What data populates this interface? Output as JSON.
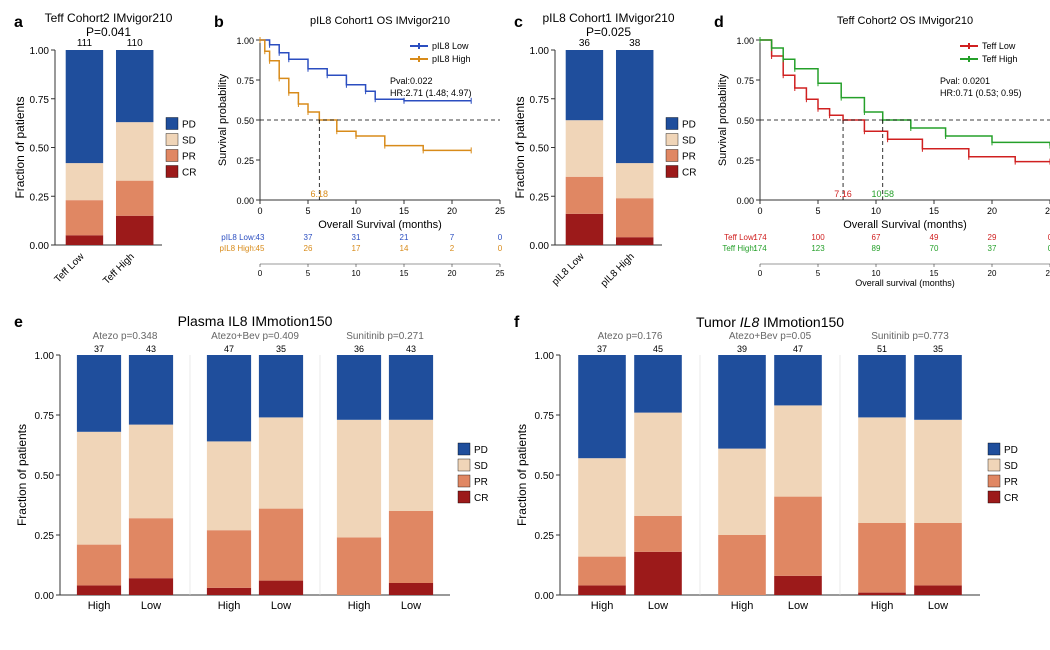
{
  "colors": {
    "PD": "#1f4e9c",
    "SD": "#f0d5b8",
    "PR": "#e08763",
    "CR": "#9c1a1a",
    "axis": "#333333",
    "bg": "#ffffff",
    "km_low_blue": "#2b4ec0",
    "km_high_orange": "#d88b1a",
    "km_low_red": "#d02020",
    "km_high_green": "#25a02a",
    "risk_text_gray": "#666666"
  },
  "legend_response": [
    "PD",
    "SD",
    "PR",
    "CR"
  ],
  "panel_a": {
    "label": "a",
    "title": "Teff Cohort2 IMvigor210",
    "pvalue": "P=0.041",
    "ylab": "Fraction of patients",
    "ymax": 1.0,
    "ytick_step": 0.25,
    "categories": [
      "Teff Low",
      "Teff High"
    ],
    "n": [
      111,
      110
    ],
    "stacks": [
      {
        "CR": 0.05,
        "PR": 0.18,
        "SD": 0.19,
        "PD": 0.58
      },
      {
        "CR": 0.15,
        "PR": 0.18,
        "SD": 0.3,
        "PD": 0.37
      }
    ],
    "rotate_xlabels": -45
  },
  "panel_b": {
    "label": "b",
    "title": "pIL8 Cohort1 OS IMvigor210",
    "ylab": "Survival probability",
    "xlab": "Overall Survival (months)",
    "xlim": [
      0,
      25
    ],
    "xtick_step": 5,
    "ylim": [
      0,
      1
    ],
    "ytick_step": 0.25,
    "ref_y": 0.5,
    "median_x": [
      6.18
    ],
    "median_colors": [
      "km_high_orange"
    ],
    "stats": [
      "Pval:0.022",
      "HR:2.71 (1.48; 4.97)"
    ],
    "series": [
      {
        "name": "pIL8 Low",
        "color": "km_low_blue",
        "points": [
          [
            0,
            1.0
          ],
          [
            1,
            0.97
          ],
          [
            2,
            0.92
          ],
          [
            3,
            0.88
          ],
          [
            5,
            0.82
          ],
          [
            7,
            0.78
          ],
          [
            9,
            0.72
          ],
          [
            11,
            0.68
          ],
          [
            12,
            0.63
          ],
          [
            15,
            0.62
          ],
          [
            22,
            0.62
          ]
        ]
      },
      {
        "name": "pIL8 High",
        "color": "km_high_orange",
        "points": [
          [
            0,
            1.0
          ],
          [
            0.5,
            0.93
          ],
          [
            1,
            0.87
          ],
          [
            2,
            0.76
          ],
          [
            3,
            0.67
          ],
          [
            4,
            0.6
          ],
          [
            5,
            0.55
          ],
          [
            6.18,
            0.5
          ],
          [
            8,
            0.43
          ],
          [
            10,
            0.4
          ],
          [
            13,
            0.34
          ],
          [
            17,
            0.31
          ],
          [
            22,
            0.31
          ]
        ]
      }
    ],
    "risk_table": {
      "times": [
        0,
        5,
        10,
        15,
        20,
        25
      ],
      "rows": [
        {
          "label": "pIL8 Low:",
          "color": "km_low_blue",
          "values": [
            43,
            37,
            31,
            21,
            7,
            0
          ]
        },
        {
          "label": "pIL8 High:",
          "color": "km_high_orange",
          "values": [
            45,
            26,
            17,
            14,
            2,
            0
          ]
        }
      ]
    }
  },
  "panel_c": {
    "label": "c",
    "title": "pIL8 Cohort1 IMvigor210",
    "pvalue": "P=0.025",
    "ylab": "Fraction of patients",
    "ymax": 1.0,
    "ytick_step": 0.25,
    "categories": [
      "pIL8 Low",
      "pIL8 High"
    ],
    "n": [
      36,
      38
    ],
    "stacks": [
      {
        "CR": 0.16,
        "PR": 0.19,
        "SD": 0.29,
        "PD": 0.36
      },
      {
        "CR": 0.04,
        "PR": 0.2,
        "SD": 0.18,
        "PD": 0.58
      }
    ],
    "rotate_xlabels": -45
  },
  "panel_d": {
    "label": "d",
    "title": "Teff Cohort2 OS IMvigor210",
    "ylab": "Survival probability",
    "xlab": "Overall Survival (months)",
    "xlab_risk": "Overall survival (months)",
    "xlim": [
      0,
      25
    ],
    "xtick_step": 5,
    "ylim": [
      0,
      1
    ],
    "ytick_step": 0.25,
    "ref_y": 0.5,
    "median_x": [
      7.16,
      10.58
    ],
    "median_colors": [
      "km_low_red",
      "km_high_green"
    ],
    "stats": [
      "Pval: 0.0201",
      "HR:0.71 (0.53; 0.95)"
    ],
    "series": [
      {
        "name": "Teff Low",
        "color": "km_low_red",
        "points": [
          [
            0,
            1.0
          ],
          [
            1,
            0.9
          ],
          [
            2,
            0.78
          ],
          [
            3,
            0.7
          ],
          [
            4,
            0.63
          ],
          [
            5,
            0.57
          ],
          [
            6,
            0.53
          ],
          [
            7.16,
            0.5
          ],
          [
            9,
            0.43
          ],
          [
            11,
            0.38
          ],
          [
            14,
            0.32
          ],
          [
            18,
            0.27
          ],
          [
            22,
            0.24
          ],
          [
            25,
            0.24
          ]
        ]
      },
      {
        "name": "Teff High",
        "color": "km_high_green",
        "points": [
          [
            0,
            1.0
          ],
          [
            1,
            0.95
          ],
          [
            2,
            0.88
          ],
          [
            3,
            0.82
          ],
          [
            5,
            0.73
          ],
          [
            7,
            0.64
          ],
          [
            9,
            0.55
          ],
          [
            10.58,
            0.5
          ],
          [
            13,
            0.45
          ],
          [
            16,
            0.4
          ],
          [
            20,
            0.36
          ],
          [
            25,
            0.34
          ]
        ]
      }
    ],
    "risk_table": {
      "times": [
        0,
        5,
        10,
        15,
        20,
        25
      ],
      "rows": [
        {
          "label": "Teff Low:",
          "color": "km_low_red",
          "values": [
            174,
            100,
            67,
            49,
            29,
            0
          ]
        },
        {
          "label": "Teff High:",
          "color": "km_high_green",
          "values": [
            174,
            123,
            89,
            70,
            37,
            0
          ]
        }
      ]
    }
  },
  "panel_e": {
    "label": "e",
    "title": "Plasma IL8 IMmotion150",
    "ylab": "Fraction of patients",
    "ymax": 1.0,
    "ytick_step": 0.25,
    "groups": [
      {
        "name": "Atezo p=0.348",
        "cats": [
          "High",
          "Low"
        ],
        "n": [
          37,
          43
        ],
        "stacks": [
          {
            "CR": 0.04,
            "PR": 0.17,
            "SD": 0.47,
            "PD": 0.32
          },
          {
            "CR": 0.07,
            "PR": 0.25,
            "SD": 0.39,
            "PD": 0.29
          }
        ]
      },
      {
        "name": "Atezo+Bev p=0.409",
        "cats": [
          "High",
          "Low"
        ],
        "n": [
          47,
          35
        ],
        "stacks": [
          {
            "CR": 0.03,
            "PR": 0.24,
            "SD": 0.37,
            "PD": 0.36
          },
          {
            "CR": 0.06,
            "PR": 0.3,
            "SD": 0.38,
            "PD": 0.26
          }
        ]
      },
      {
        "name": "Sunitinib p=0.271",
        "cats": [
          "High",
          "Low"
        ],
        "n": [
          36,
          43
        ],
        "stacks": [
          {
            "CR": 0.0,
            "PR": 0.24,
            "SD": 0.49,
            "PD": 0.27
          },
          {
            "CR": 0.05,
            "PR": 0.3,
            "SD": 0.38,
            "PD": 0.27
          }
        ]
      }
    ]
  },
  "panel_f": {
    "label": "f",
    "title_html": "Tumor <i>IL8</i> IMmotion150",
    "ylab": "Fraction of patients",
    "ymax": 1.0,
    "ytick_step": 0.25,
    "groups": [
      {
        "name": "Atezo p=0.176",
        "cats": [
          "High",
          "Low"
        ],
        "n": [
          37,
          45
        ],
        "stacks": [
          {
            "CR": 0.04,
            "PR": 0.12,
            "SD": 0.41,
            "PD": 0.43
          },
          {
            "CR": 0.18,
            "PR": 0.15,
            "SD": 0.43,
            "PD": 0.24
          }
        ]
      },
      {
        "name": "Atezo+Bev p=0.05",
        "cats": [
          "High",
          "Low"
        ],
        "n": [
          39,
          47
        ],
        "stacks": [
          {
            "CR": 0.0,
            "PR": 0.25,
            "SD": 0.36,
            "PD": 0.39
          },
          {
            "CR": 0.08,
            "PR": 0.33,
            "SD": 0.38,
            "PD": 0.21
          }
        ]
      },
      {
        "name": "Sunitinib p=0.773",
        "cats": [
          "High",
          "Low"
        ],
        "n": [
          51,
          35
        ],
        "stacks": [
          {
            "CR": 0.01,
            "PR": 0.29,
            "SD": 0.44,
            "PD": 0.26
          },
          {
            "CR": 0.04,
            "PR": 0.26,
            "SD": 0.43,
            "PD": 0.27
          }
        ]
      }
    ]
  }
}
